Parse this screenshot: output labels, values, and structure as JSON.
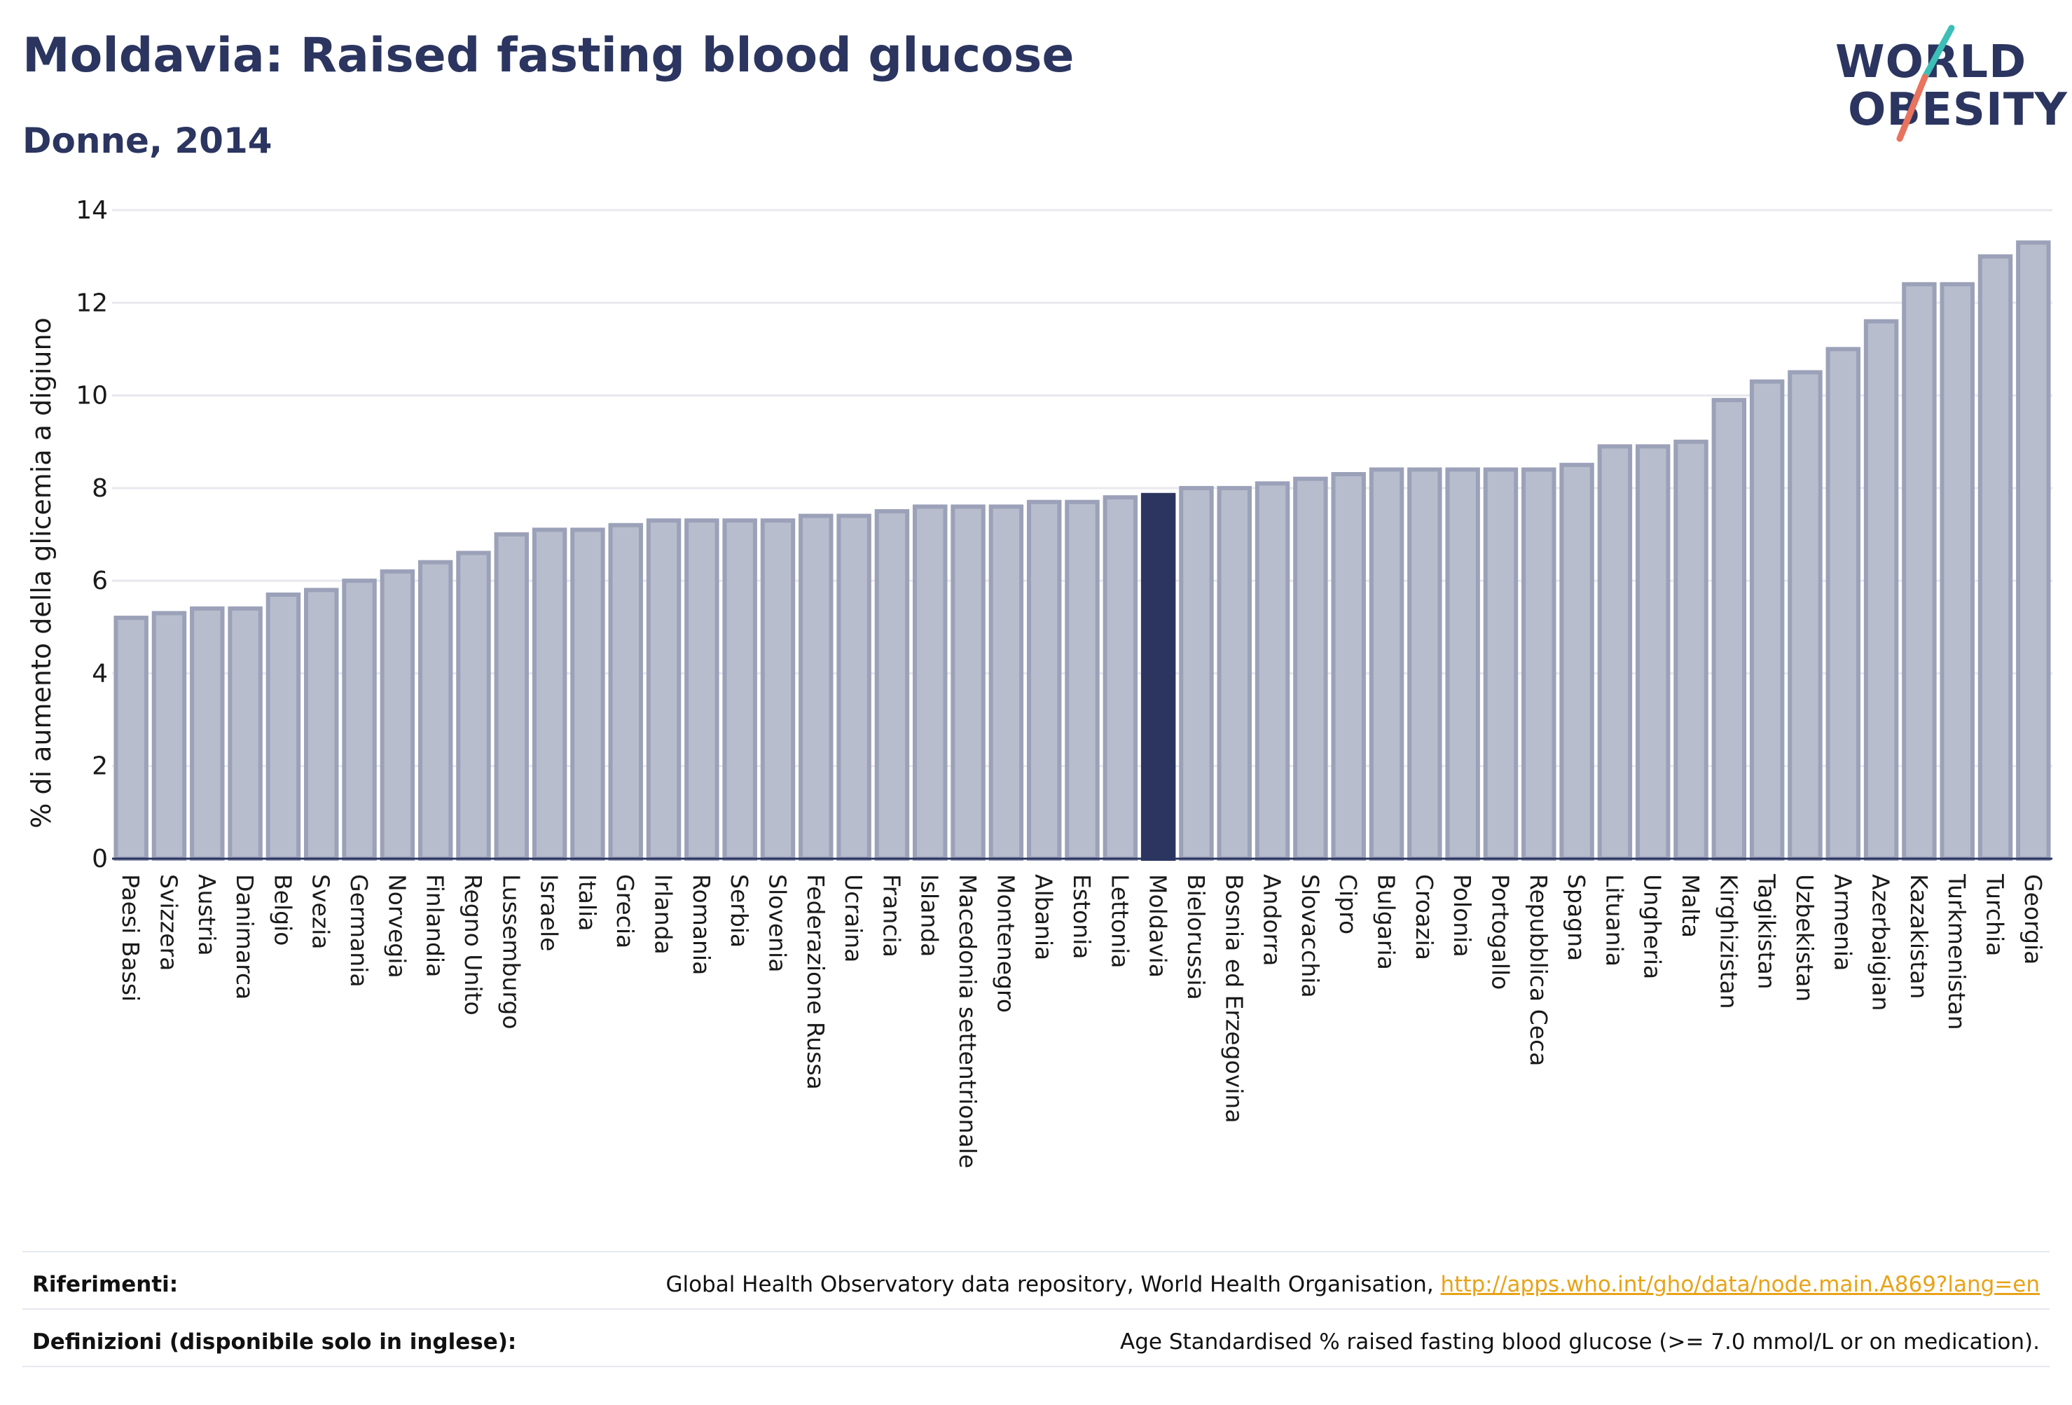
{
  "header": {
    "title": "Moldavia: Raised fasting blood glucose",
    "subtitle": "Donne, 2014"
  },
  "logo": {
    "line1": "WORLD",
    "line2": "OBESITY",
    "accent_teal": "#3bbfb7",
    "accent_coral": "#e8735f"
  },
  "colors": {
    "bar": "#b8bdcd",
    "bar_stroke": "#9ba1b8",
    "highlight": "#2b3560",
    "grid": "#e8e8ee",
    "text": "#2b3560"
  },
  "chart_data": {
    "type": "bar",
    "title": "",
    "xlabel": "",
    "ylabel": "% di aumento della glicemia a digiuno",
    "ylim": [
      0,
      14
    ],
    "yticks": [
      0,
      2,
      4,
      6,
      8,
      10,
      12,
      14
    ],
    "grid": true,
    "highlight": "Moldavia",
    "categories": [
      "Paesi Bassi",
      "Svizzera",
      "Austria",
      "Danimarca",
      "Belgio",
      "Svezia",
      "Germania",
      "Norvegia",
      "Finlandia",
      "Regno Unito",
      "Lussemburgo",
      "Israele",
      "Italia",
      "Grecia",
      "Irlanda",
      "Romania",
      "Serbia",
      "Slovenia",
      "Federazione Russa",
      "Ucraina",
      "Francia",
      "Islanda",
      "Macedonia settentrionale",
      "Montenegro",
      "Albania",
      "Estonia",
      "Lettonia",
      "Moldavia",
      "Bielorussia",
      "Bosnia ed Erzegovina",
      "Andorra",
      "Slovacchia",
      "Cipro",
      "Bulgaria",
      "Croazia",
      "Polonia",
      "Portogallo",
      "Repubblica Ceca",
      "Spagna",
      "Lituania",
      "Ungheria",
      "Malta",
      "Kirghizistan",
      "Tagikistan",
      "Uzbekistan",
      "Armenia",
      "Azerbaigian",
      "Kazakistan",
      "Turkmenistan",
      "Turchia",
      "Georgia"
    ],
    "values": [
      5.2,
      5.3,
      5.4,
      5.4,
      5.7,
      5.8,
      6.0,
      6.2,
      6.4,
      6.6,
      7.0,
      7.1,
      7.1,
      7.2,
      7.3,
      7.3,
      7.3,
      7.3,
      7.4,
      7.4,
      7.5,
      7.6,
      7.6,
      7.6,
      7.7,
      7.7,
      7.8,
      7.85,
      8.0,
      8.0,
      8.1,
      8.2,
      8.3,
      8.4,
      8.4,
      8.4,
      8.4,
      8.4,
      8.5,
      8.9,
      8.9,
      9.0,
      9.9,
      10.3,
      10.5,
      11.0,
      11.6,
      12.4,
      12.4,
      13.0,
      13.3
    ]
  },
  "footer": {
    "references_label": "Riferimenti:",
    "references_text": "Global Health Observatory data repository, World Health Organisation,",
    "references_link": "http://apps.who.int/gho/data/node.main.A869?lang=en",
    "definitions_label": "Definizioni (disponibile solo in inglese):",
    "definitions_text": "Age Standardised % raised fasting blood glucose (>= 7.0 mmol/L or on medication)."
  }
}
